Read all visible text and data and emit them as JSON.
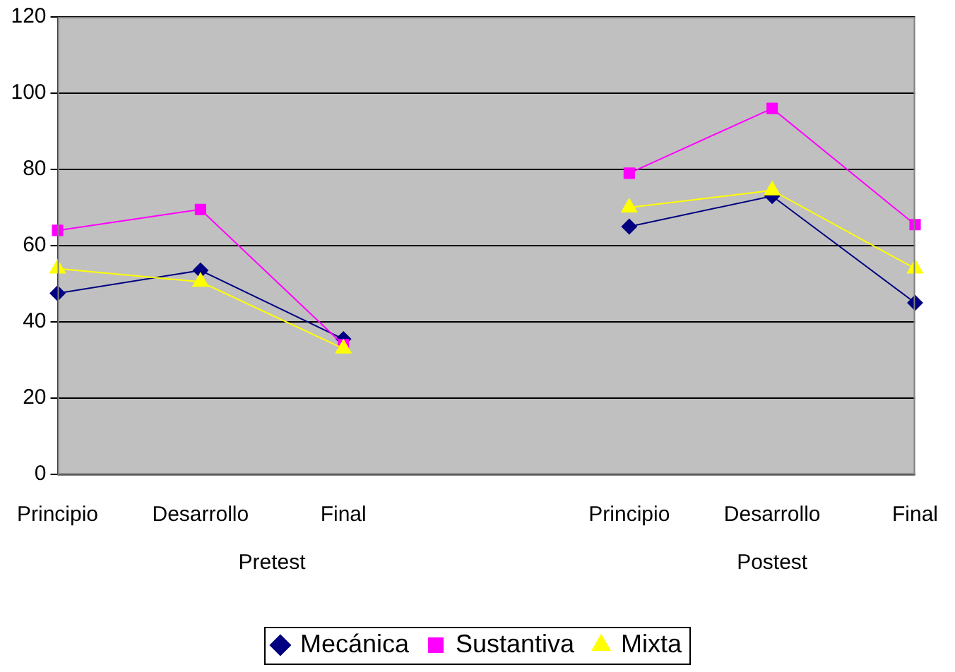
{
  "chart_data": {
    "type": "line",
    "categories": [
      "Principio",
      "Desarrollo",
      "Final",
      null,
      "Principio",
      "Desarrollo",
      "Final"
    ],
    "series": [
      {
        "name": "Mecánica",
        "color": "#000080",
        "marker": "diamond",
        "values": [
          47.5,
          53.5,
          35.5,
          null,
          65,
          73,
          45
        ]
      },
      {
        "name": "Sustantiva",
        "color": "#ff00ff",
        "marker": "square",
        "values": [
          64,
          69.5,
          34,
          null,
          79,
          96,
          65.5
        ]
      },
      {
        "name": "Mixta",
        "color": "#ffff00",
        "marker": "triangle",
        "values": [
          54,
          50.5,
          33,
          null,
          70,
          74.5,
          54
        ]
      }
    ],
    "annotations": [
      "Pretest",
      "Postest"
    ],
    "ylim": [
      0,
      120
    ],
    "yticks": [
      0,
      20,
      40,
      60,
      80,
      100,
      120
    ],
    "grid": "y",
    "legend": "bottom"
  }
}
